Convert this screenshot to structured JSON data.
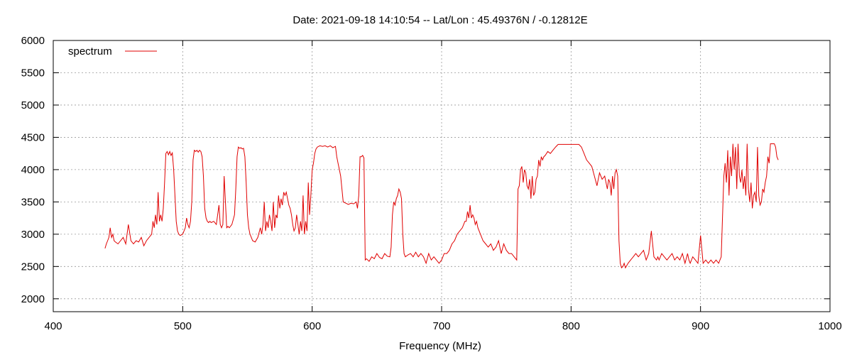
{
  "chart_data": {
    "type": "line",
    "title": "Date: 2021-09-18 14:10:54  --  Lat/Lon : 45.49376N / -0.12812E",
    "xlabel": "Frequency (MHz)",
    "ylabel": "",
    "xlim": [
      400,
      1000
    ],
    "ylim": [
      1800,
      6000
    ],
    "x_ticks": [
      400,
      500,
      600,
      700,
      800,
      900,
      1000
    ],
    "y_ticks": [
      2000,
      2500,
      3000,
      3500,
      4000,
      4500,
      5000,
      5500,
      6000
    ],
    "grid": true,
    "legend_position": "top-left",
    "series": [
      {
        "name": "spectrum",
        "color": "#e00000",
        "x": [
          440,
          441,
          442,
          443,
          444,
          445,
          446,
          447,
          448,
          450,
          452,
          454,
          456,
          458,
          460,
          462,
          464,
          466,
          468,
          470,
          472,
          474,
          476,
          477,
          478,
          479,
          480,
          481,
          482,
          483,
          484,
          485,
          486,
          487,
          488,
          489,
          490,
          491,
          492,
          493,
          494,
          495,
          496,
          497,
          498,
          500,
          502,
          503,
          504,
          505,
          506,
          507,
          508,
          509,
          510,
          511,
          512,
          513,
          514,
          515,
          516,
          517,
          518,
          519,
          520,
          521,
          522,
          524,
          526,
          528,
          529,
          530,
          531,
          532,
          534,
          535,
          536,
          538,
          540,
          541,
          542,
          543,
          544,
          545,
          546,
          547,
          548,
          549,
          550,
          551,
          552,
          553,
          554,
          556,
          558,
          560,
          561,
          562,
          563,
          564,
          565,
          566,
          567,
          568,
          569,
          570,
          571,
          572,
          573,
          574,
          575,
          576,
          577,
          578,
          579,
          580,
          581,
          582,
          583,
          584,
          585,
          586,
          587,
          588,
          589,
          590,
          591,
          592,
          593,
          594,
          595,
          596,
          597,
          598,
          599,
          600,
          601,
          602,
          603,
          604,
          606,
          608,
          610,
          612,
          614,
          616,
          618,
          619,
          620,
          621,
          622,
          623,
          624,
          626,
          628,
          630,
          632,
          634,
          635,
          636,
          637,
          638,
          639,
          640,
          641,
          642,
          644,
          646,
          648,
          650,
          652,
          654,
          656,
          658,
          660,
          661,
          662,
          663,
          664,
          665,
          666,
          667,
          668,
          669,
          670,
          671,
          672,
          674,
          676,
          678,
          680,
          682,
          684,
          686,
          688,
          690,
          692,
          694,
          696,
          698,
          700,
          702,
          704,
          706,
          708,
          710,
          712,
          714,
          716,
          718,
          719,
          720,
          721,
          722,
          723,
          724,
          725,
          726,
          727,
          728,
          730,
          732,
          734,
          736,
          738,
          740,
          742,
          744,
          746,
          748,
          750,
          752,
          754,
          756,
          758,
          759,
          760,
          761,
          762,
          763,
          764,
          765,
          766,
          767,
          768,
          769,
          770,
          771,
          772,
          773,
          774,
          775,
          776,
          777,
          778,
          779,
          780,
          782,
          784,
          786,
          788,
          790,
          792,
          794,
          796,
          798,
          800,
          802,
          804,
          806,
          808,
          810,
          812,
          814,
          816,
          818,
          820,
          822,
          824,
          826,
          828,
          829,
          830,
          831,
          832,
          833,
          834,
          835,
          836,
          837,
          838,
          839,
          840,
          841,
          842,
          844,
          846,
          848,
          850,
          852,
          854,
          856,
          858,
          860,
          862,
          864,
          866,
          867,
          868,
          870,
          872,
          874,
          876,
          878,
          880,
          882,
          884,
          886,
          888,
          890,
          891,
          892,
          894,
          896,
          898,
          900,
          902,
          904,
          906,
          908,
          910,
          912,
          914,
          916,
          918,
          919,
          920,
          921,
          922,
          923,
          924,
          925,
          926,
          927,
          928,
          929,
          930,
          931,
          932,
          933,
          934,
          935,
          936,
          937,
          938,
          939,
          940,
          941,
          942,
          943,
          944,
          945,
          946,
          947,
          948,
          949,
          950,
          951,
          952,
          953,
          954,
          955,
          956,
          957,
          958,
          959,
          960
        ],
        "y": [
          2780,
          2850,
          2900,
          2950,
          3100,
          2950,
          3000,
          2900,
          2880,
          2850,
          2900,
          2950,
          2850,
          3150,
          2900,
          2850,
          2900,
          2880,
          2950,
          2820,
          2900,
          2950,
          3000,
          3200,
          3100,
          3300,
          3150,
          3650,
          3200,
          3300,
          3200,
          3400,
          3800,
          4250,
          4280,
          4230,
          4280,
          4220,
          4260,
          4000,
          3600,
          3200,
          3050,
          3000,
          2980,
          3000,
          3100,
          3250,
          3150,
          3100,
          3200,
          3500,
          4150,
          4300,
          4280,
          4300,
          4270,
          4300,
          4280,
          4200,
          3900,
          3400,
          3250,
          3200,
          3180,
          3200,
          3180,
          3200,
          3150,
          3450,
          3150,
          3100,
          3150,
          3900,
          3100,
          3120,
          3100,
          3150,
          3300,
          3700,
          4200,
          4350,
          4330,
          4340,
          4320,
          4330,
          4200,
          3800,
          3300,
          3100,
          3000,
          2950,
          2900,
          2880,
          2950,
          3100,
          3000,
          3150,
          3500,
          3050,
          3200,
          3100,
          3300,
          3200,
          3050,
          3500,
          3100,
          3300,
          3250,
          3600,
          3400,
          3550,
          3450,
          3650,
          3600,
          3650,
          3550,
          3450,
          3400,
          3300,
          3150,
          3050,
          3100,
          3300,
          3150,
          3000,
          3200,
          3050,
          3600,
          3000,
          3200,
          3050,
          3800,
          3300,
          3600,
          4000,
          4100,
          4250,
          4320,
          4350,
          4370,
          4360,
          4370,
          4350,
          4370,
          4340,
          4360,
          4200,
          4100,
          4000,
          3900,
          3700,
          3500,
          3480,
          3460,
          3480,
          3470,
          3500,
          3400,
          3600,
          4200,
          4200,
          4220,
          4180,
          2600,
          2620,
          2580,
          2650,
          2620,
          2700,
          2640,
          2620,
          2700,
          2660,
          2650,
          2800,
          3300,
          3500,
          3450,
          3550,
          3600,
          3700,
          3650,
          3550,
          3000,
          2700,
          2650,
          2680,
          2700,
          2650,
          2720,
          2650,
          2700,
          2650,
          2550,
          2700,
          2600,
          2650,
          2600,
          2550,
          2600,
          2700,
          2700,
          2750,
          2850,
          2900,
          3000,
          3050,
          3100,
          3200,
          3200,
          3350,
          3250,
          3450,
          3250,
          3300,
          3250,
          3150,
          3200,
          3100,
          3000,
          2900,
          2850,
          2800,
          2850,
          2750,
          2800,
          2900,
          2700,
          2850,
          2750,
          2700,
          2700,
          2650,
          2600,
          3700,
          3750,
          4000,
          4050,
          3800,
          4000,
          3950,
          3750,
          3700,
          3850,
          3550,
          3900,
          3600,
          3650,
          3850,
          3900,
          4150,
          4050,
          4200,
          4150,
          4200,
          4220,
          4280,
          4250,
          4300,
          4350,
          4390,
          4390,
          4390,
          4390,
          4390,
          4390,
          4390,
          4390,
          4390,
          4350,
          4250,
          4150,
          4100,
          4050,
          3900,
          3750,
          3950,
          3850,
          3900,
          3700,
          3850,
          3800,
          3600,
          3900,
          3700,
          3950,
          4000,
          3900,
          2900,
          2550,
          2480,
          2500,
          2550,
          2480,
          2550,
          2600,
          2650,
          2700,
          2650,
          2700,
          2750,
          2600,
          2700,
          3050,
          2650,
          2600,
          2650,
          2600,
          2700,
          2650,
          2600,
          2650,
          2700,
          2600,
          2650,
          2600,
          2700,
          2550,
          2700,
          2600,
          2550,
          2650,
          2600,
          2550,
          2980,
          2550,
          2600,
          2550,
          2600,
          2550,
          2600,
          2550,
          2650,
          3900,
          4100,
          3800,
          4300,
          3600,
          4200,
          3900,
          4400,
          4000,
          4350,
          3700,
          4400,
          3900,
          3800,
          4000,
          3700,
          3900,
          3600,
          4400,
          3700,
          3500,
          3800,
          3400,
          3600,
          3650,
          3500,
          4350,
          3600,
          3450,
          3500,
          3700,
          3650,
          3800,
          3900,
          4200,
          4100,
          4400,
          4400,
          4400,
          4400,
          4350,
          4200,
          4150
        ]
      }
    ]
  }
}
